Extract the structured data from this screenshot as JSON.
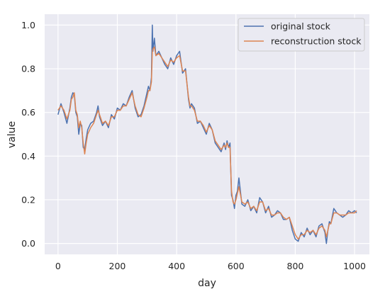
{
  "chart_data": {
    "type": "line",
    "xlabel": "day",
    "ylabel": "value",
    "xlim": [
      -45,
      1050
    ],
    "ylim": [
      -0.05,
      1.05
    ],
    "xticks": [
      0,
      200,
      400,
      600,
      800,
      1000
    ],
    "yticks": [
      0.0,
      0.2,
      0.4,
      0.6,
      0.8,
      1.0
    ],
    "grid": true,
    "legend_position": "top-right",
    "series": [
      {
        "name": "original stock",
        "color": "#4c72b0",
        "x": [
          0,
          10,
          20,
          30,
          40,
          45,
          50,
          55,
          60,
          65,
          70,
          75,
          80,
          85,
          90,
          95,
          100,
          110,
          120,
          130,
          135,
          140,
          150,
          160,
          170,
          180,
          190,
          200,
          210,
          220,
          230,
          240,
          250,
          260,
          270,
          280,
          290,
          300,
          305,
          310,
          315,
          318,
          320,
          325,
          330,
          340,
          350,
          360,
          370,
          380,
          390,
          400,
          410,
          420,
          430,
          440,
          445,
          450,
          460,
          470,
          480,
          490,
          500,
          510,
          520,
          530,
          540,
          550,
          560,
          565,
          570,
          575,
          580,
          585,
          590,
          595,
          600,
          605,
          610,
          620,
          630,
          640,
          650,
          660,
          670,
          680,
          690,
          700,
          710,
          720,
          730,
          740,
          750,
          760,
          770,
          780,
          790,
          800,
          810,
          820,
          830,
          840,
          850,
          860,
          870,
          880,
          890,
          900,
          905,
          910,
          915,
          920,
          930,
          940,
          950,
          960,
          970,
          980,
          990,
          1000,
          1007
        ],
        "y": [
          0.59,
          0.64,
          0.6,
          0.55,
          0.62,
          0.67,
          0.69,
          0.68,
          0.6,
          0.58,
          0.5,
          0.55,
          0.54,
          0.44,
          0.43,
          0.48,
          0.52,
          0.55,
          0.56,
          0.6,
          0.63,
          0.58,
          0.54,
          0.56,
          0.53,
          0.59,
          0.57,
          0.62,
          0.61,
          0.64,
          0.63,
          0.67,
          0.7,
          0.62,
          0.58,
          0.59,
          0.63,
          0.69,
          0.72,
          0.7,
          0.76,
          1.0,
          0.88,
          0.94,
          0.86,
          0.88,
          0.85,
          0.82,
          0.8,
          0.85,
          0.82,
          0.86,
          0.88,
          0.78,
          0.8,
          0.66,
          0.62,
          0.64,
          0.62,
          0.55,
          0.56,
          0.53,
          0.5,
          0.55,
          0.52,
          0.46,
          0.44,
          0.42,
          0.46,
          0.43,
          0.47,
          0.44,
          0.46,
          0.22,
          0.2,
          0.16,
          0.22,
          0.24,
          0.3,
          0.18,
          0.17,
          0.2,
          0.15,
          0.17,
          0.14,
          0.21,
          0.19,
          0.14,
          0.17,
          0.12,
          0.13,
          0.15,
          0.14,
          0.11,
          0.11,
          0.12,
          0.06,
          0.02,
          0.01,
          0.05,
          0.03,
          0.07,
          0.04,
          0.06,
          0.03,
          0.08,
          0.09,
          0.05,
          0.0,
          0.06,
          0.1,
          0.09,
          0.16,
          0.14,
          0.13,
          0.12,
          0.13,
          0.15,
          0.14,
          0.15,
          0.14
        ]
      },
      {
        "name": "reconstruction stock",
        "color": "#dd8452",
        "x": [
          0,
          10,
          20,
          30,
          40,
          45,
          50,
          55,
          60,
          65,
          70,
          75,
          80,
          85,
          90,
          95,
          100,
          110,
          120,
          130,
          135,
          140,
          150,
          160,
          170,
          180,
          190,
          200,
          210,
          220,
          230,
          240,
          250,
          260,
          270,
          280,
          290,
          300,
          305,
          310,
          315,
          318,
          320,
          325,
          330,
          340,
          350,
          360,
          370,
          380,
          390,
          400,
          410,
          420,
          430,
          440,
          445,
          450,
          460,
          470,
          480,
          490,
          500,
          510,
          520,
          530,
          540,
          550,
          560,
          565,
          570,
          575,
          580,
          585,
          590,
          595,
          600,
          605,
          610,
          620,
          630,
          640,
          650,
          660,
          670,
          680,
          690,
          700,
          710,
          720,
          730,
          740,
          750,
          760,
          770,
          780,
          790,
          800,
          810,
          820,
          830,
          840,
          850,
          860,
          870,
          880,
          890,
          900,
          905,
          910,
          915,
          920,
          930,
          940,
          950,
          960,
          970,
          980,
          990,
          1000,
          1007
        ],
        "y": [
          0.61,
          0.63,
          0.61,
          0.57,
          0.61,
          0.66,
          0.67,
          0.69,
          0.61,
          0.59,
          0.53,
          0.56,
          0.53,
          0.46,
          0.41,
          0.46,
          0.5,
          0.53,
          0.55,
          0.59,
          0.61,
          0.59,
          0.55,
          0.56,
          0.54,
          0.58,
          0.58,
          0.61,
          0.61,
          0.63,
          0.63,
          0.66,
          0.69,
          0.63,
          0.59,
          0.58,
          0.62,
          0.67,
          0.7,
          0.7,
          0.74,
          0.88,
          0.89,
          0.9,
          0.86,
          0.87,
          0.85,
          0.83,
          0.81,
          0.84,
          0.83,
          0.85,
          0.86,
          0.79,
          0.79,
          0.67,
          0.63,
          0.63,
          0.61,
          0.56,
          0.56,
          0.54,
          0.51,
          0.54,
          0.52,
          0.47,
          0.45,
          0.43,
          0.45,
          0.44,
          0.46,
          0.44,
          0.44,
          0.24,
          0.19,
          0.18,
          0.2,
          0.23,
          0.26,
          0.19,
          0.18,
          0.19,
          0.16,
          0.17,
          0.15,
          0.19,
          0.19,
          0.15,
          0.16,
          0.13,
          0.13,
          0.14,
          0.14,
          0.12,
          0.11,
          0.12,
          0.08,
          0.04,
          0.02,
          0.04,
          0.04,
          0.06,
          0.05,
          0.06,
          0.04,
          0.07,
          0.08,
          0.06,
          0.03,
          0.06,
          0.09,
          0.09,
          0.14,
          0.14,
          0.13,
          0.13,
          0.13,
          0.14,
          0.14,
          0.14,
          0.15
        ]
      }
    ]
  }
}
